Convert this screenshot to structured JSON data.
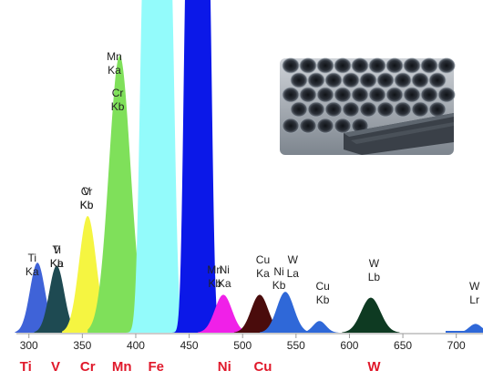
{
  "chart_data": {
    "type": "area",
    "xlim": [
      290,
      725
    ],
    "x_ticks": [
      300,
      350,
      400,
      450,
      500,
      550,
      600,
      650,
      700
    ],
    "peaks": [
      {
        "id": "ti-ka",
        "center": 308,
        "width": 7,
        "height": 0.24,
        "color": "#3f63d8"
      },
      {
        "id": "v-ka",
        "center": 326,
        "width": 7,
        "height": 0.23,
        "color": "#1e4a52"
      },
      {
        "id": "cr-ka",
        "center": 355,
        "width": 8,
        "height": 0.4,
        "color": "#f5f541"
      },
      {
        "id": "mn-ka",
        "center": 385,
        "width": 10,
        "height": 0.95,
        "color": "#7fe05a"
      },
      {
        "id": "fe-ka",
        "center": 420,
        "width": 22,
        "height": 1.35,
        "color": "#93fbfb",
        "flat": true
      },
      {
        "id": "fe-kb",
        "center": 458,
        "width": 18,
        "height": 1.4,
        "color": "#0b18e8",
        "flat": true
      },
      {
        "id": "ni-ka",
        "center": 482,
        "width": 8,
        "height": 0.13,
        "color": "#f020e8"
      },
      {
        "id": "cu-ka",
        "center": 516,
        "width": 8,
        "height": 0.13,
        "color": "#4a0c0c"
      },
      {
        "id": "w-la",
        "center": 540,
        "width": 8,
        "height": 0.14,
        "color": "#2f68d8"
      },
      {
        "id": "cu-kb",
        "center": 572,
        "width": 6,
        "height": 0.04,
        "color": "#2f68d8"
      },
      {
        "id": "w-lb",
        "center": 620,
        "width": 9,
        "height": 0.12,
        "color": "#0e3a22"
      },
      {
        "id": "w-lr",
        "center": 718,
        "width": 6,
        "height": 0.03,
        "color": "#2f68d8"
      }
    ],
    "peak_labels": [
      {
        "text": "Ti",
        "x": 303,
        "line": 0
      },
      {
        "text": "Ka",
        "x": 303,
        "line": 1
      },
      {
        "text": "Ti",
        "x": 326,
        "line": 0
      },
      {
        "text": "Kb",
        "x": 326,
        "line": 1
      },
      {
        "text": "V",
        "x": 326,
        "line": 0
      },
      {
        "text": "Ka",
        "x": 326,
        "line": 1
      },
      {
        "text": "Cr",
        "x": 354,
        "line": 0
      },
      {
        "text": "Kb",
        "x": 354,
        "line": 1
      },
      {
        "text": "V",
        "x": 354,
        "line": 0
      },
      {
        "text": "Kb",
        "x": 354,
        "line": 1
      },
      {
        "text": "Mn",
        "x": 380,
        "line": 0
      },
      {
        "text": "Ka",
        "x": 380,
        "line": 1
      },
      {
        "text": "Cr",
        "x": 383,
        "line": 2
      },
      {
        "text": "Kb",
        "x": 383,
        "line": 3
      },
      {
        "text": "Ni",
        "x": 483,
        "line": 0
      },
      {
        "text": "Ka",
        "x": 483,
        "line": 1
      },
      {
        "text": "Mn",
        "x": 474,
        "line": 0
      },
      {
        "text": "Kb",
        "x": 474,
        "line": 1
      },
      {
        "text": "Cu",
        "x": 519,
        "line": 0
      },
      {
        "text": "Ka",
        "x": 519,
        "line": 1
      },
      {
        "text": "Ni",
        "x": 534,
        "line": 0
      },
      {
        "text": "Kb",
        "x": 534,
        "line": 1
      },
      {
        "text": "W",
        "x": 547,
        "line": 0
      },
      {
        "text": "La",
        "x": 547,
        "line": 1
      },
      {
        "text": "Cu",
        "x": 575,
        "line": 0
      },
      {
        "text": "Kb",
        "x": 575,
        "line": 1
      },
      {
        "text": "W",
        "x": 623,
        "line": 0
      },
      {
        "text": "Lb",
        "x": 623,
        "line": 1
      },
      {
        "text": "W",
        "x": 717,
        "line": 0
      },
      {
        "text": "Lr",
        "x": 717,
        "line": 1
      }
    ],
    "element_labels": [
      {
        "text": "Ti",
        "x": 297
      },
      {
        "text": "V",
        "x": 325
      },
      {
        "text": "Cr",
        "x": 355
      },
      {
        "text": "Mn",
        "x": 387
      },
      {
        "text": "Fe",
        "x": 419
      },
      {
        "text": "Ni",
        "x": 483
      },
      {
        "text": "Cu",
        "x": 519
      },
      {
        "text": "W",
        "x": 623
      }
    ],
    "colors": {
      "axis": "#9a9a9a",
      "element_label": "#e0192b",
      "photo_dark": "#2a2f36",
      "photo_light": "#aab0b8"
    }
  }
}
